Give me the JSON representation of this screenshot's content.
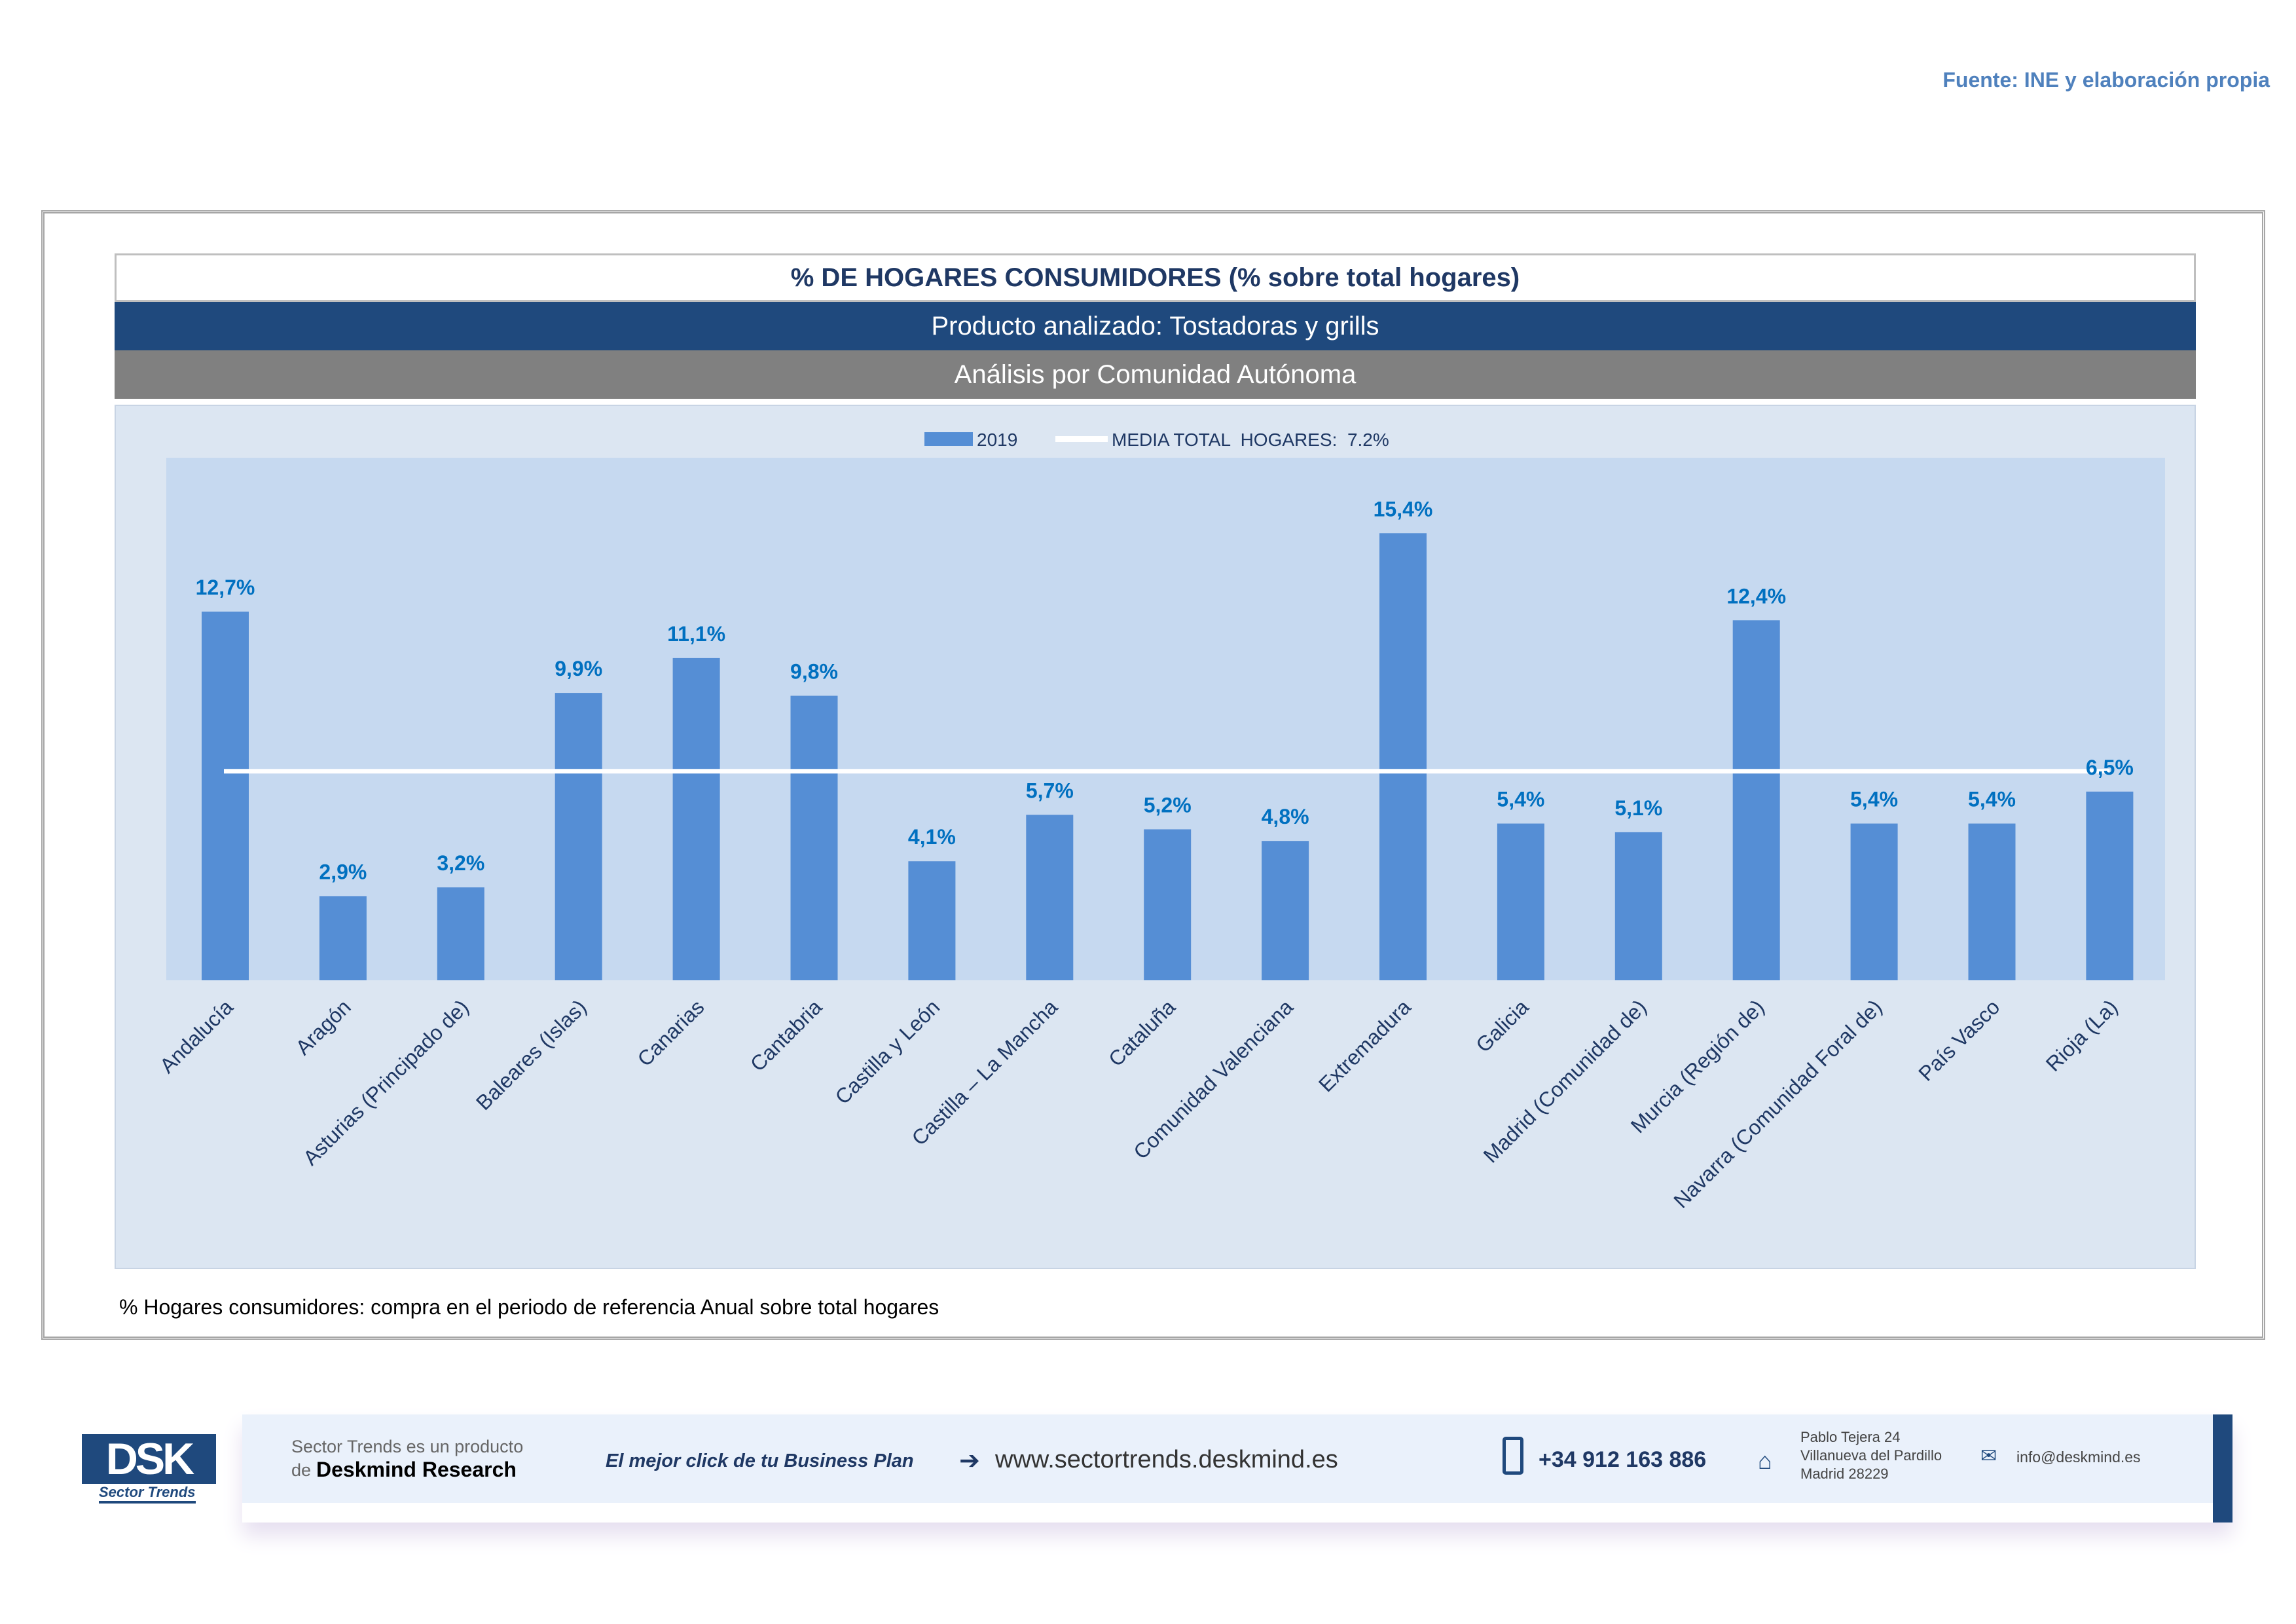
{
  "source": "Fuente: INE y elaboración propia",
  "header": {
    "title": "% DE HOGARES CONSUMIDORES (% sobre total hogares)",
    "product": "Producto analizado: Tostadoras y grills",
    "analysis": "Análisis por Comunidad Autónoma"
  },
  "note": "% Hogares consumidores: compra en el periodo de referencia Anual sobre total hogares",
  "chart_data": {
    "type": "bar",
    "categories": [
      "Andalucía",
      "Aragón",
      "Asturias (Principado de)",
      "Baleares (Islas)",
      "Canarias",
      "Cantabria",
      "Castilla y León",
      "Castilla – La Mancha",
      "Cataluña",
      "Comunidad Valenciana",
      "Extremadura",
      "Galicia",
      "Madrid (Comunidad de)",
      "Murcia (Región de)",
      "Navarra (Comunidad Foral de)",
      "País Vasco",
      "Rioja (La)"
    ],
    "series": [
      {
        "name": "2019",
        "values": [
          12.7,
          2.9,
          3.2,
          9.9,
          11.1,
          9.8,
          4.1,
          5.7,
          5.2,
          4.8,
          15.4,
          5.4,
          5.1,
          12.4,
          5.4,
          5.4,
          6.5
        ],
        "color": "#558ed5"
      }
    ],
    "data_labels": [
      "12,7%",
      "2,9%",
      "3,2%",
      "9,9%",
      "11,1%",
      "9,8%",
      "4,1%",
      "5,7%",
      "5,2%",
      "4,8%",
      "15,4%",
      "5,4%",
      "5,1%",
      "12,4%",
      "5,4%",
      "5,4%",
      "6,5%"
    ],
    "reference_line": {
      "name": "MEDIA TOTAL  HOGARES:  7.2%",
      "value": 7.2,
      "color": "#ffffff"
    },
    "legend": {
      "placement": "top-center",
      "items": [
        "2019",
        "MEDIA TOTAL  HOGARES:  7.2%"
      ]
    },
    "ylim": [
      0,
      18
    ],
    "grid": false,
    "xlabel": "",
    "ylabel": ""
  },
  "footer": {
    "logo": "DSK",
    "logo_sub": "Sector Trends",
    "line1": "Sector Trends es un producto",
    "line2_pre": "de",
    "line2_brand": "Deskmind Research",
    "slogan": "El mejor click de tu Business Plan",
    "website": "www.sectortrends.deskmind.es",
    "phone": "+34 912 163 886",
    "address": [
      "Pablo Tejera 24",
      "Villanueva del Pardillo",
      "Madrid 28229"
    ],
    "email": "info@deskmind.es"
  }
}
